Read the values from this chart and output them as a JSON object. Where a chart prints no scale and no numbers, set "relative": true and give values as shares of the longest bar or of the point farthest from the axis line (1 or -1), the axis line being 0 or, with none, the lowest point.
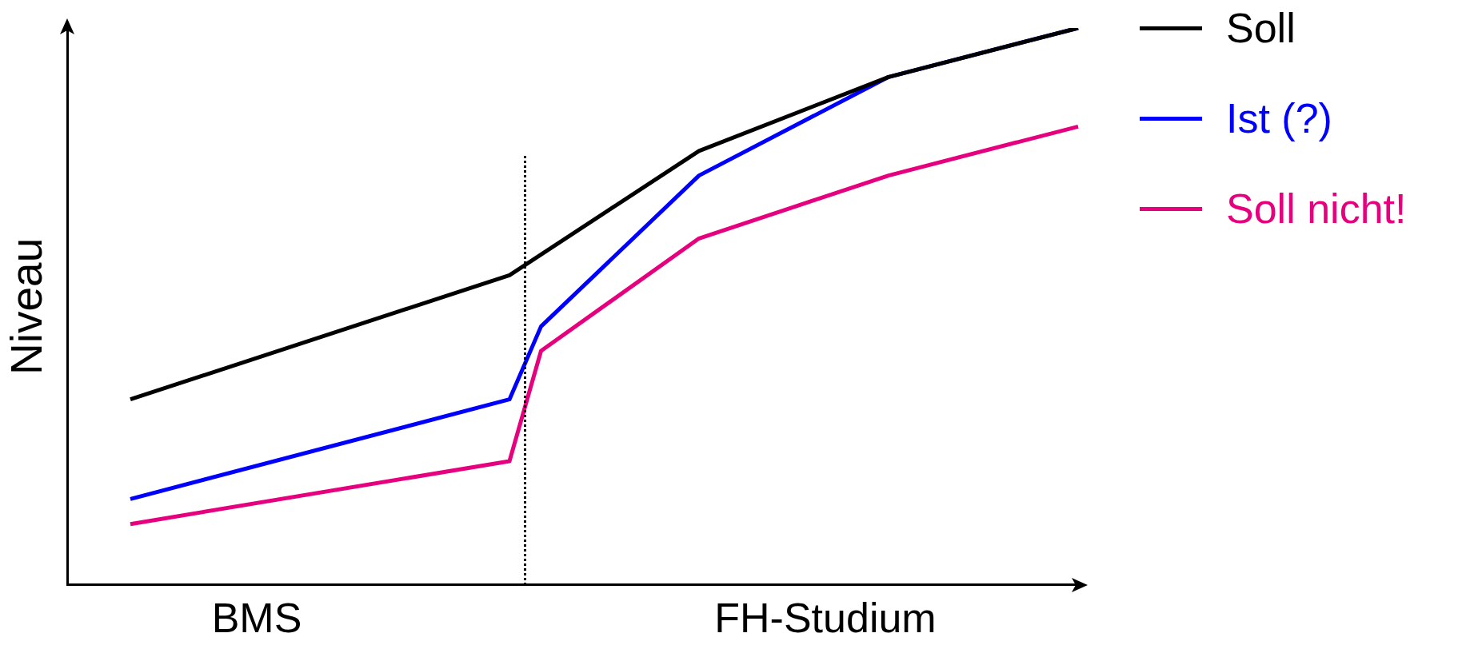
{
  "chart_data": {
    "type": "line",
    "relative": true,
    "ylabel": "Niveau",
    "categories": [
      null,
      null,
      null,
      null,
      null,
      null,
      "BMS",
      null,
      null,
      null,
      null,
      null,
      null,
      null,
      null,
      null,
      null,
      null,
      null,
      null,
      null,
      null,
      null,
      null,
      "FH-Studium",
      null,
      null,
      null,
      null,
      null,
      null,
      null,
      null
    ],
    "series": [
      {
        "name": "Soll",
        "color": "#000000",
        "values": [
          null,
          null,
          0.333,
          null,
          null,
          null,
          null,
          null,
          null,
          null,
          null,
          null,
          null,
          null,
          0.556,
          null,
          null,
          null,
          null,
          null,
          0.779,
          null,
          null,
          null,
          null,
          null,
          0.912,
          null,
          null,
          null,
          null,
          null,
          1
        ]
      },
      {
        "name": "Ist (?)",
        "color": "#0000ff",
        "values": [
          null,
          null,
          0.154,
          null,
          null,
          null,
          null,
          null,
          null,
          null,
          null,
          null,
          null,
          null,
          0.333,
          0.464,
          null,
          null,
          null,
          null,
          0.735,
          null,
          null,
          null,
          null,
          null,
          0.912,
          null,
          null,
          null,
          null,
          null,
          1
        ]
      },
      {
        "name": "Soll nicht!",
        "color": "#e6007e",
        "values": [
          null,
          null,
          0.109,
          null,
          null,
          null,
          null,
          null,
          null,
          null,
          null,
          null,
          null,
          null,
          0.222,
          0.42,
          null,
          null,
          null,
          null,
          0.622,
          null,
          null,
          null,
          null,
          null,
          0.735,
          null,
          null,
          null,
          null,
          null,
          0.823
        ]
      }
    ],
    "legend": "top right",
    "grid": false,
    "marker": "none",
    "line_style": "solid"
  }
}
